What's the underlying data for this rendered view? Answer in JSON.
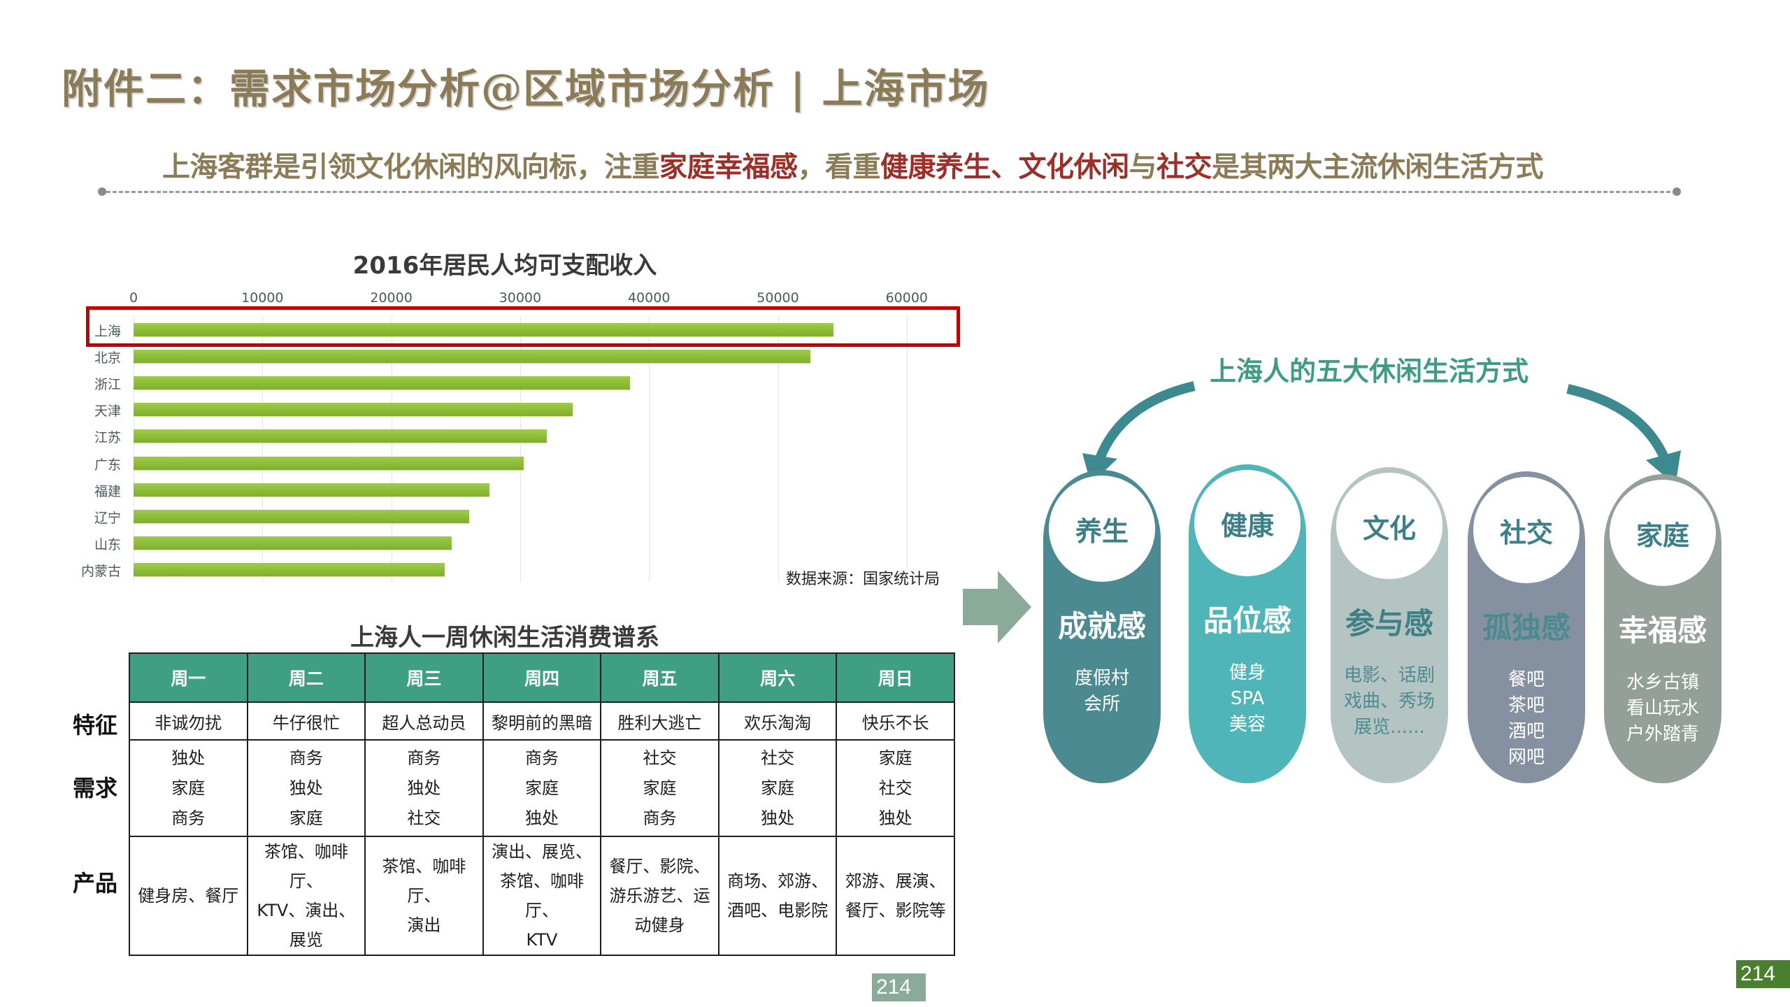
{
  "header": {
    "title": "附件二：需求市场分析@区域市场分析 | 上海市场",
    "headline": {
      "part1": "上海客群是引领文化休闲的风向标，注重",
      "hl1": "家庭幸福感",
      "part2": "，看重",
      "hl2": "健康养生、文化休闲",
      "part3": "与",
      "hl3": "社交",
      "part4": "是其两大主流休闲生活方式"
    }
  },
  "chart_data": {
    "type": "bar",
    "orientation": "horizontal",
    "title": "2016年居民人均可支配收入",
    "categories": [
      "上海",
      "北京",
      "浙江",
      "天津",
      "江苏",
      "广东",
      "福建",
      "辽宁",
      "山东",
      "内蒙古"
    ],
    "values": [
      54305,
      52530,
      38529,
      34074,
      32070,
      30296,
      27608,
      26040,
      24685,
      24127
    ],
    "xlabel": "",
    "ylabel": "",
    "xlim": [
      0,
      65000
    ],
    "ticks": [
      "0",
      "10000",
      "20000",
      "30000",
      "40000",
      "50000",
      "60000"
    ],
    "grid": true,
    "highlight": "上海",
    "bar_color": "#8cbd3a",
    "highlight_color": "#c00000",
    "source": "数据来源：国家统计局"
  },
  "table": {
    "title": "上海人一周休闲生活消费谱系",
    "row_labels": {
      "feature": "特征",
      "need": "需求",
      "product": "产品"
    },
    "days": [
      "周一",
      "周二",
      "周三",
      "周四",
      "周五",
      "周六",
      "周日"
    ],
    "features": [
      "非诚勿扰",
      "牛仔很忙",
      "超人总动员",
      "黎明前的黑暗",
      "胜利大逃亡",
      "欢乐淘淘",
      "快乐不长"
    ],
    "needs": [
      [
        "独处",
        "家庭",
        "商务"
      ],
      [
        "商务",
        "独处",
        "家庭"
      ],
      [
        "商务",
        "独处",
        "社交"
      ],
      [
        "商务",
        "家庭",
        "独处"
      ],
      [
        "社交",
        "家庭",
        "商务"
      ],
      [
        "社交",
        "家庭",
        "独处"
      ],
      [
        "家庭",
        "社交",
        "独处"
      ]
    ],
    "products": [
      [
        "健身房、餐厅"
      ],
      [
        "茶馆、咖啡厅、",
        "KTV、演出、",
        "展览"
      ],
      [
        "茶馆、咖啡厅、",
        "演出"
      ],
      [
        "演出、展览、",
        "茶馆、咖啡厅、",
        "KTV"
      ],
      [
        "餐厅、影院、",
        "游乐游艺、运",
        "动健身"
      ],
      [
        "商场、郊游、",
        "酒吧、电影院"
      ],
      [
        "郊游、展演、",
        "餐厅、影院等"
      ]
    ],
    "header_color": "#3f9f82"
  },
  "diagram": {
    "title": "上海人的五大休闲生活方式",
    "arrow_color": "#3c8a8f",
    "pills": [
      {
        "name": "养生",
        "feel": "成就感",
        "items": [
          "度假村",
          "会所"
        ],
        "color": "#4b8a90",
        "feel_color": "#ffffff",
        "items_color": "#ffffff",
        "name_color": "#3c7f86"
      },
      {
        "name": "健康",
        "feel": "品位感",
        "items": [
          "健身",
          "SPA",
          "美容"
        ],
        "color": "#4fb5b9",
        "feel_color": "#ffffff",
        "items_color": "#ffffff",
        "name_color": "#3c7f86"
      },
      {
        "name": "文化",
        "feel": "参与感",
        "items": [
          "电影、话剧",
          "戏曲、秀场",
          "展览......"
        ],
        "color": "#b4c4c2",
        "feel_color": "#3f8087",
        "items_color": "#4f8c90",
        "name_color": "#3c7f86"
      },
      {
        "name": "社交",
        "feel": "孤独感",
        "items": [
          "餐吧",
          "茶吧",
          "酒吧",
          "网吧"
        ],
        "color": "#8591a1",
        "feel_color": "#4b8a90",
        "items_color": "#ffffff",
        "name_color": "#3c7f86"
      },
      {
        "name": "家庭",
        "feel": "幸福感",
        "items": [
          "水乡古镇",
          "看山玩水",
          "户外踏青"
        ],
        "color": "#939f98",
        "feel_color": "#ffffff",
        "items_color": "#ffffff",
        "name_color": "#3c7f86"
      }
    ]
  },
  "footer": {
    "page_center": "214",
    "page_right": "214",
    "center_badge_color": "#8aab9a",
    "right_badge_color": "#4a7f2f"
  }
}
